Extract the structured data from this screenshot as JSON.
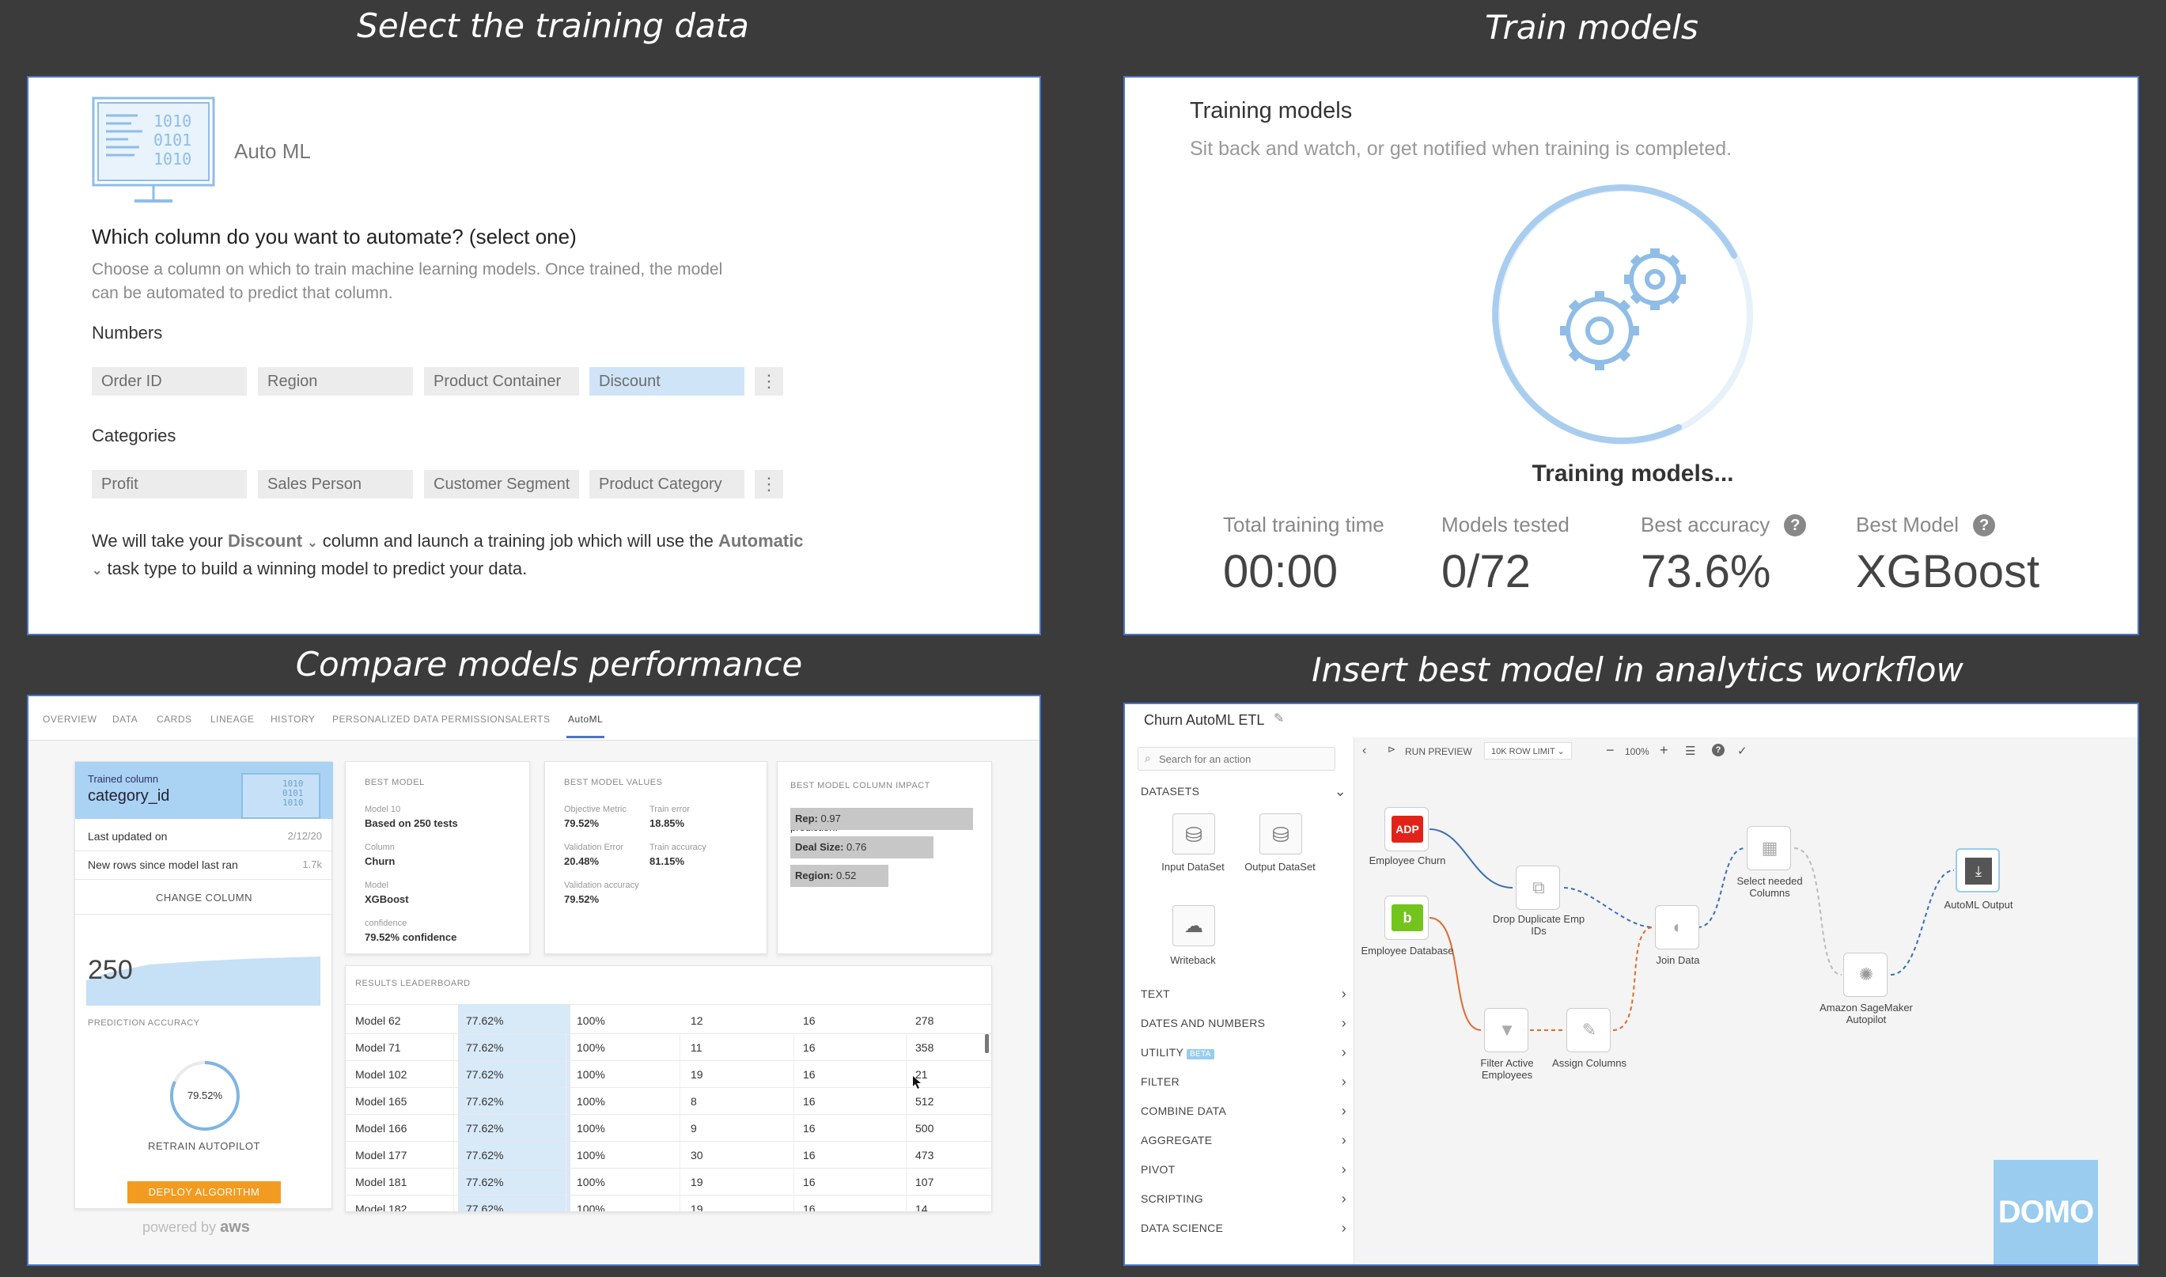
{
  "headings": {
    "select": "Select the training data",
    "train": "Train models",
    "compare": "Compare models performance",
    "insert": "Insert best model in analytics workflow"
  },
  "select_panel": {
    "app_name": "Auto ML",
    "question": "Which column do you want to automate? (select one)",
    "description": "Choose a column on which to train machine learning models. Once trained, the model can be automated to predict that column.",
    "numbers_label": "Numbers",
    "numbers": [
      "Order ID",
      "Region",
      "Product Container",
      "Discount"
    ],
    "categories_label": "Categories",
    "categories": [
      "Profit",
      "Sales Person",
      "Customer Segment",
      "Product Category"
    ],
    "summary_prefix": "We will take your",
    "summary_column": "Discount",
    "summary_mid": "column and launch a training job which will use the",
    "summary_task": "Automatic",
    "summary_suffix": "task type to build a winning model to predict your data."
  },
  "train_panel": {
    "title": "Training models",
    "subtitle": "Sit back and watch, or get notified when training is completed.",
    "status": "Training models...",
    "stats": [
      {
        "label": "Total training time",
        "value": "00:00"
      },
      {
        "label": "Models tested",
        "value": "0/72"
      },
      {
        "label": "Best accuracy",
        "value": "73.6%"
      },
      {
        "label": "Best Model",
        "value": "XGBoost"
      }
    ]
  },
  "compare_panel": {
    "tabs": [
      "OVERVIEW",
      "DATA",
      "CARDS",
      "LINEAGE",
      "HISTORY",
      "PERSONALIZED DATA PERMISSIONS",
      "ALERTS",
      "AutoML"
    ],
    "trained_label": "Trained column",
    "trained_value": "category_id",
    "last_updated_label": "Last updated on",
    "last_updated_value": "2/12/20",
    "new_rows_label": "New rows since model last ran",
    "new_rows_value": "1.7k",
    "change_column": "CHANGE COLUMN",
    "big_number": "250",
    "prediction_accuracy": "PREDICTION ACCURACY",
    "gauge_value": "79.52%",
    "retrain": "RETRAIN AUTOPILOT",
    "deploy": "DEPLOY ALGORITHM",
    "powered_by": "powered by",
    "aws": "aws",
    "best_model": {
      "title": "BEST MODEL",
      "model_label": "Model 10",
      "model_value": "Based on 250 tests",
      "column_label": "Column",
      "column_value": "Churn",
      "model2_label": "Model",
      "model2_value": "XGBoost",
      "confidence_label": "confidence",
      "confidence_value": "79.52% confidence"
    },
    "best_values": {
      "title": "BEST MODEL VALUES",
      "objective_label": "Objective Metric",
      "objective_value": "79.52%",
      "train_error_label": "Train error",
      "train_error_value": "18.85%",
      "val_error_label": "Validation Error",
      "val_error_value": "20.48%",
      "train_acc_label": "Train accuracy",
      "train_acc_value": "81.15%",
      "val_acc_label": "Validation accuracy",
      "val_acc_value": "79.52%"
    },
    "impact": {
      "title": "BEST MODEL COLUMN IMPACT",
      "desc": "Columns that had a greatest impact on prediction:",
      "bars": [
        {
          "name": "Rep:",
          "value": "0.97",
          "fraction": 0.97
        },
        {
          "name": "Deal Size:",
          "value": "0.76",
          "fraction": 0.76
        },
        {
          "name": "Region:",
          "value": "0.52",
          "fraction": 0.52
        }
      ]
    },
    "leaderboard_title": "RESULTS LEADERBOARD",
    "leaderboard": [
      [
        "Model 62",
        "77.62%",
        "100%",
        "12",
        "16",
        "278"
      ],
      [
        "Model 71",
        "77.62%",
        "100%",
        "11",
        "16",
        "358"
      ],
      [
        "Model 102",
        "77.62%",
        "100%",
        "19",
        "16",
        "21"
      ],
      [
        "Model 165",
        "77.62%",
        "100%",
        "8",
        "16",
        "512"
      ],
      [
        "Model 166",
        "77.62%",
        "100%",
        "9",
        "16",
        "500"
      ],
      [
        "Model 177",
        "77.62%",
        "100%",
        "30",
        "16",
        "473"
      ],
      [
        "Model 181",
        "77.62%",
        "100%",
        "19",
        "16",
        "107"
      ],
      [
        "Model 182",
        "77.62%",
        "100%",
        "19",
        "16",
        "14"
      ]
    ]
  },
  "etl_panel": {
    "title": "Churn AutoML ETL",
    "search_placeholder": "Search for an action",
    "datasets_label": "DATASETS",
    "input_dataset": "Input DataSet",
    "output_dataset": "Output DataSet",
    "writeback": "Writeback",
    "categories": [
      {
        "label": "TEXT"
      },
      {
        "label": "DATES AND NUMBERS"
      },
      {
        "label": "UTILITY",
        "badge": "BETA"
      },
      {
        "label": "FILTER"
      },
      {
        "label": "COMBINE DATA"
      },
      {
        "label": "AGGREGATE"
      },
      {
        "label": "PIVOT"
      },
      {
        "label": "SCRIPTING"
      },
      {
        "label": "DATA SCIENCE"
      }
    ],
    "toolbar": {
      "run_preview": "RUN PREVIEW",
      "row_limit": "10K ROW LIMIT",
      "zoom": "100%"
    },
    "nodes": {
      "employee_churn": "Employee Churn",
      "employee_database": "Employee Database",
      "drop_duplicate": "Drop Duplicate Emp IDs",
      "filter_active": "Filter Active Employees",
      "assign_columns": "Assign Columns",
      "join_data": "Join Data",
      "select_columns": "Select needed Columns",
      "sagemaker": "Amazon SageMaker Autopilot",
      "automl_output": "AutoML Output"
    },
    "logo": "DOMO"
  },
  "colors": {
    "background": "#3b3b3b",
    "panel_border": "#4a74c9",
    "accent_blue": "#a9cdee",
    "deploy_orange": "#f39b21",
    "domo_blue": "#99ccee"
  }
}
